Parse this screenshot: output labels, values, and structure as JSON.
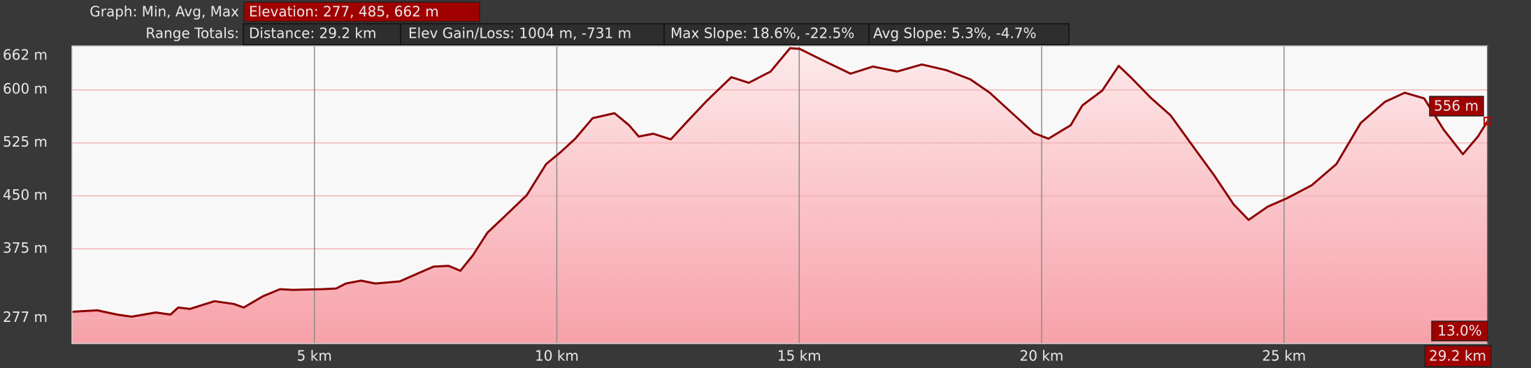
{
  "header": {
    "graph_label": "Graph: Min, Avg, Max",
    "elevation": "Elevation: 277, 485, 662 m",
    "range_label": "Range Totals:",
    "distance": "Distance: 29.2 km",
    "gain_loss": "Elev Gain/Loss: 1004 m, -731 m",
    "max_slope": "Max Slope: 18.6%, -22.5%",
    "avg_slope": "Avg Slope: 5.3%, -4.7%"
  },
  "cursor": {
    "elevation_label": "556 m",
    "slope_label": "13.0%",
    "distance_label": "29.2 km"
  },
  "chart_data": {
    "type": "area",
    "color": "#8b0000",
    "x": [
      0,
      0.52,
      0.93,
      1.23,
      1.73,
      2.03,
      2.19,
      2.43,
      2.94,
      3.34,
      3.54,
      3.94,
      4.29,
      4.55,
      5.15,
      5.45,
      5.65,
      5.96,
      6.26,
      6.76,
      7.16,
      7.46,
      7.77,
      8.01,
      8.27,
      8.57,
      8.97,
      9.38,
      9.78,
      10.08,
      10.38,
      10.74,
      11.19,
      11.49,
      11.69,
      11.99,
      12.35,
      12.7,
      13.1,
      13.6,
      13.96,
      14.41,
      14.81,
      15.01,
      15.51,
      16.06,
      16.52,
      17.02,
      17.53,
      18.03,
      18.53,
      18.93,
      19.44,
      19.84,
      20.14,
      20.6,
      20.84,
      21.25,
      21.59,
      21.85,
      22.25,
      22.66,
      23.06,
      23.56,
      23.96,
      24.27,
      24.67,
      25.07,
      25.57,
      26.08,
      26.58,
      27.08,
      27.49,
      27.89,
      28.29,
      28.69,
      29.0,
      29.2
    ],
    "values": [
      286,
      288,
      282,
      279,
      285,
      282,
      292,
      290,
      301,
      297,
      292,
      308,
      318,
      317,
      318,
      319,
      326,
      330,
      326,
      329,
      341,
      350,
      351,
      344,
      366,
      398,
      424,
      451,
      495,
      512,
      531,
      560,
      567,
      550,
      534,
      538,
      530,
      556,
      585,
      618,
      610,
      626,
      659,
      658,
      641,
      623,
      633,
      626,
      636,
      628,
      615,
      596,
      564,
      539,
      531,
      550,
      578,
      599,
      634,
      617,
      589,
      564,
      526,
      479,
      438,
      416,
      435,
      447,
      465,
      495,
      553,
      583,
      596,
      588,
      544,
      509,
      534,
      556
    ],
    "xlim": [
      0,
      29.2
    ],
    "ylim": [
      241,
      662
    ],
    "xticks": [
      {
        "value": 5,
        "label": "5 km"
      },
      {
        "value": 10,
        "label": "10 km"
      },
      {
        "value": 15,
        "label": "15 km"
      },
      {
        "value": 20,
        "label": "20 km"
      },
      {
        "value": 25,
        "label": "25 km"
      }
    ],
    "yticks": [
      {
        "value": 277,
        "label": "277 m"
      },
      {
        "value": 375,
        "label": "375 m"
      },
      {
        "value": 450,
        "label": "450 m"
      },
      {
        "value": 525,
        "label": "525 m"
      },
      {
        "value": 600,
        "label": "600 m"
      },
      {
        "value": 662,
        "label": "662 m"
      }
    ],
    "grid": true
  }
}
